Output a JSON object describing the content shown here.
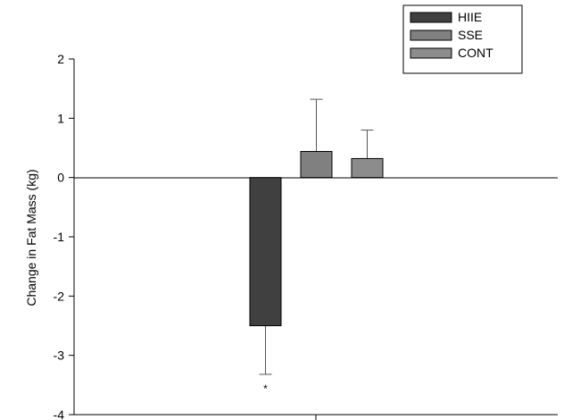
{
  "chart_data": {
    "type": "bar",
    "title": "",
    "xlabel": "",
    "ylabel": "Change in Fat Mass (kg)",
    "ylim": [
      -4,
      2
    ],
    "yticks": [
      2,
      1,
      0,
      -1,
      -2,
      -3,
      -4
    ],
    "grid": false,
    "legend_position": "top-right",
    "series": [
      {
        "name": "HIIE",
        "value": -2.5,
        "error": 0.82,
        "error_direction": "down",
        "color": "#404040",
        "annotation": "*"
      },
      {
        "name": "SSE",
        "value": 0.44,
        "error": 0.88,
        "error_direction": "up",
        "color": "#808080",
        "annotation": ""
      },
      {
        "name": "CONT",
        "value": 0.32,
        "error": 0.48,
        "error_direction": "up",
        "color": "#8c8c8c",
        "annotation": ""
      }
    ]
  }
}
